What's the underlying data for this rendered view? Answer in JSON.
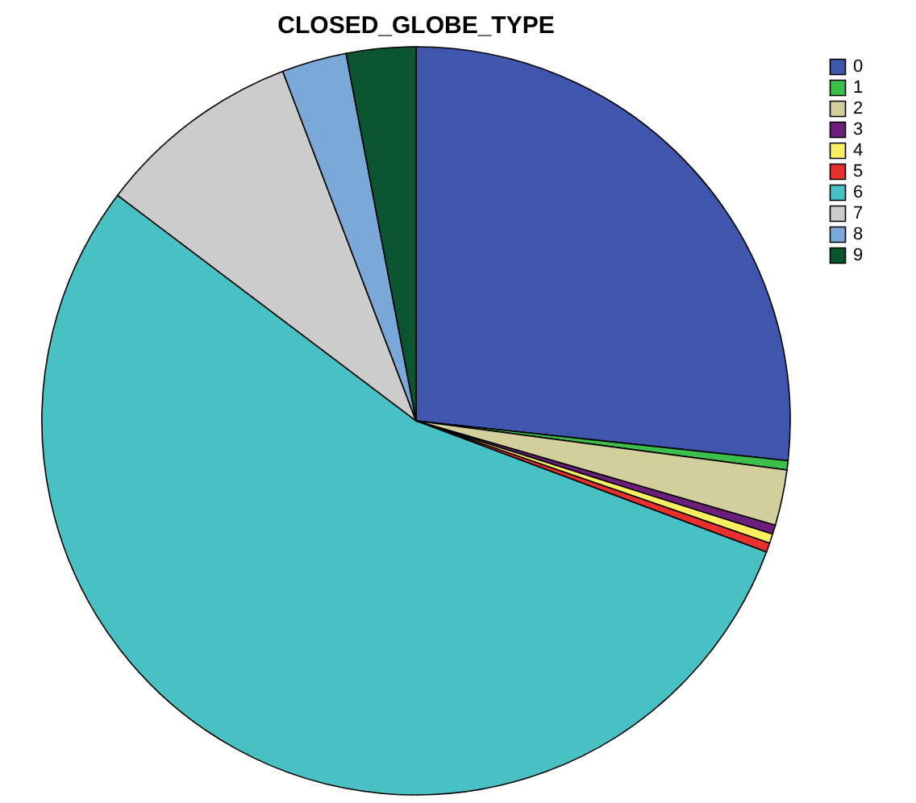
{
  "chart_data": {
    "type": "pie",
    "title": "CLOSED_GLOBE_TYPE",
    "categories": [
      "0",
      "1",
      "2",
      "3",
      "4",
      "5",
      "6",
      "7",
      "8",
      "9"
    ],
    "values": [
      26.7,
      0.4,
      2.4,
      0.4,
      0.4,
      0.4,
      54.6,
      8.9,
      2.8,
      3.0
    ],
    "colors": [
      "#3f56ac",
      "#3cbf4a",
      "#d3cf9c",
      "#6b1f7a",
      "#f8f060",
      "#e8312e",
      "#48c1c5",
      "#cccccc",
      "#7aa8d8",
      "#0b5530"
    ],
    "legend": "top right"
  }
}
